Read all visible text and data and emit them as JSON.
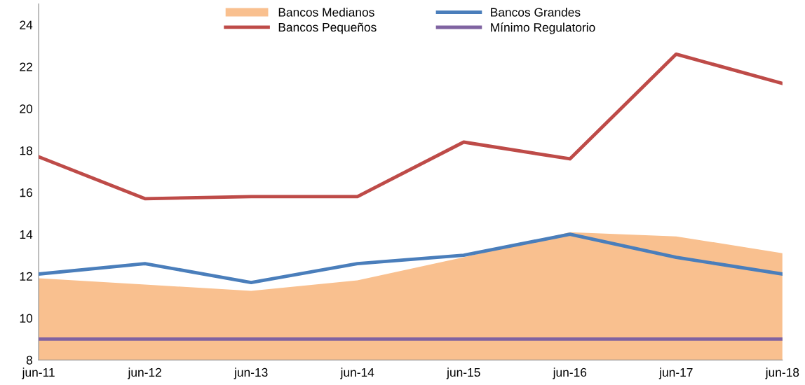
{
  "chart_data": {
    "type": "line",
    "categories": [
      "jun-11",
      "jun-12",
      "jun-13",
      "jun-14",
      "jun-15",
      "jun-16",
      "jun-17",
      "jun-18"
    ],
    "series": [
      {
        "name": "Bancos Medianos",
        "type": "area",
        "color": "#f9c08f",
        "values": [
          11.9,
          11.6,
          11.3,
          11.8,
          12.9,
          14.1,
          13.9,
          13.1
        ]
      },
      {
        "name": "Bancos Grandes",
        "color": "#4a7ebb",
        "values": [
          12.1,
          12.6,
          11.7,
          12.6,
          13.0,
          14.0,
          12.9,
          12.1
        ]
      },
      {
        "name": "Bancos Pequeños",
        "color": "#be4b48",
        "values": [
          17.7,
          15.7,
          15.8,
          15.8,
          18.4,
          17.6,
          22.6,
          21.2
        ]
      },
      {
        "name": "Mínimo Regulatorio",
        "color": "#7f63a1",
        "values": [
          9,
          9,
          9,
          9,
          9,
          9,
          9,
          9
        ]
      }
    ],
    "ylim": [
      8,
      25
    ],
    "yticks": [
      8,
      10,
      12,
      14,
      16,
      18,
      20,
      22,
      24
    ],
    "grid": false,
    "legend": "top",
    "marker": "none",
    "line_style": "solid"
  }
}
